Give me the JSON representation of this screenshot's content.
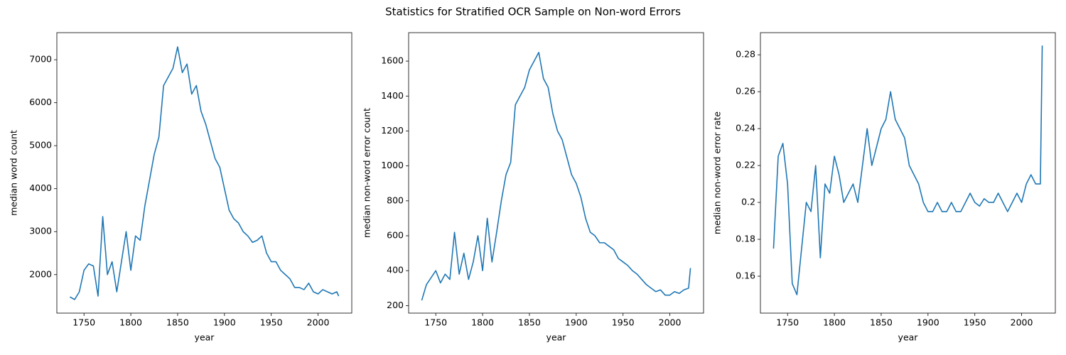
{
  "title": "Statistics for Stratified OCR Sample on Non-word Errors",
  "chart_data": [
    {
      "type": "line",
      "xlabel": "year",
      "ylabel": "median word count",
      "x": [
        1735,
        1740,
        1745,
        1750,
        1755,
        1760,
        1765,
        1770,
        1775,
        1780,
        1785,
        1790,
        1795,
        1800,
        1805,
        1810,
        1815,
        1820,
        1825,
        1830,
        1835,
        1840,
        1845,
        1850,
        1855,
        1860,
        1865,
        1870,
        1875,
        1880,
        1885,
        1890,
        1895,
        1900,
        1905,
        1910,
        1915,
        1920,
        1925,
        1930,
        1935,
        1940,
        1945,
        1950,
        1955,
        1960,
        1965,
        1970,
        1975,
        1980,
        1985,
        1990,
        1995,
        2000,
        2005,
        2010,
        2015,
        2020,
        2022
      ],
      "series": [
        {
          "color": "#1f77b4",
          "values": [
            1480,
            1420,
            1600,
            2100,
            2250,
            2200,
            1500,
            3350,
            2000,
            2300,
            1600,
            2300,
            3000,
            2100,
            2900,
            2800,
            3600,
            4200,
            4800,
            5200,
            6400,
            6600,
            6800,
            7300,
            6700,
            6900,
            6200,
            6400,
            5800,
            5500,
            5100,
            4700,
            4500,
            4000,
            3500,
            3300,
            3200,
            3000,
            2900,
            2750,
            2800,
            2900,
            2500,
            2300,
            2300,
            2100,
            2000,
            1900,
            1700,
            1700,
            1650,
            1800,
            1600,
            1550,
            1650,
            1600,
            1550,
            1600,
            1500
          ]
        }
      ],
      "xlim": [
        1721,
        2036
      ],
      "xticks": [
        1750,
        1800,
        1850,
        1900,
        1950,
        2000
      ],
      "ylim": [
        1104,
        7630
      ],
      "yticks": [
        2000,
        3000,
        4000,
        5000,
        6000,
        7000
      ]
    },
    {
      "type": "line",
      "xlabel": "year",
      "ylabel": "median non-word error count",
      "x": [
        1735,
        1740,
        1745,
        1750,
        1755,
        1760,
        1765,
        1770,
        1775,
        1780,
        1785,
        1790,
        1795,
        1800,
        1805,
        1810,
        1815,
        1820,
        1825,
        1830,
        1835,
        1840,
        1845,
        1850,
        1855,
        1860,
        1865,
        1870,
        1875,
        1880,
        1885,
        1890,
        1895,
        1900,
        1905,
        1910,
        1915,
        1920,
        1925,
        1930,
        1935,
        1940,
        1945,
        1950,
        1955,
        1960,
        1965,
        1970,
        1975,
        1980,
        1985,
        1990,
        1995,
        2000,
        2005,
        2010,
        2015,
        2020,
        2022
      ],
      "series": [
        {
          "color": "#1f77b4",
          "values": [
            230,
            320,
            360,
            400,
            330,
            380,
            350,
            620,
            380,
            500,
            350,
            450,
            600,
            400,
            700,
            450,
            620,
            800,
            950,
            1020,
            1350,
            1400,
            1450,
            1550,
            1600,
            1650,
            1500,
            1450,
            1300,
            1200,
            1150,
            1050,
            950,
            900,
            820,
            700,
            620,
            600,
            560,
            560,
            540,
            520,
            470,
            450,
            430,
            400,
            380,
            350,
            320,
            300,
            280,
            290,
            260,
            260,
            280,
            270,
            290,
            300,
            415
          ]
        }
      ],
      "xlim": [
        1721,
        2036
      ],
      "xticks": [
        1750,
        1800,
        1850,
        1900,
        1950,
        2000
      ],
      "ylim": [
        157,
        1763
      ],
      "yticks": [
        200,
        400,
        600,
        800,
        1000,
        1200,
        1400,
        1600
      ]
    },
    {
      "type": "line",
      "xlabel": "year",
      "ylabel": "median non-word error rate",
      "x": [
        1735,
        1740,
        1745,
        1750,
        1755,
        1760,
        1765,
        1770,
        1775,
        1780,
        1785,
        1790,
        1795,
        1800,
        1805,
        1810,
        1815,
        1820,
        1825,
        1830,
        1835,
        1840,
        1845,
        1850,
        1855,
        1860,
        1865,
        1870,
        1875,
        1880,
        1885,
        1890,
        1895,
        1900,
        1905,
        1910,
        1915,
        1920,
        1925,
        1930,
        1935,
        1940,
        1945,
        1950,
        1955,
        1960,
        1965,
        1970,
        1975,
        1980,
        1985,
        1990,
        1995,
        2000,
        2005,
        2010,
        2015,
        2020,
        2022
      ],
      "series": [
        {
          "color": "#1f77b4",
          "values": [
            0.175,
            0.225,
            0.232,
            0.21,
            0.156,
            0.15,
            0.175,
            0.2,
            0.195,
            0.22,
            0.17,
            0.21,
            0.205,
            0.225,
            0.215,
            0.2,
            0.205,
            0.21,
            0.2,
            0.22,
            0.24,
            0.22,
            0.23,
            0.24,
            0.245,
            0.26,
            0.245,
            0.24,
            0.235,
            0.22,
            0.215,
            0.21,
            0.2,
            0.195,
            0.195,
            0.2,
            0.195,
            0.195,
            0.2,
            0.195,
            0.195,
            0.2,
            0.205,
            0.2,
            0.198,
            0.202,
            0.2,
            0.2,
            0.205,
            0.2,
            0.195,
            0.2,
            0.205,
            0.2,
            0.21,
            0.215,
            0.21,
            0.21,
            0.285
          ]
        }
      ],
      "xlim": [
        1721,
        2036
      ],
      "xticks": [
        1750,
        1800,
        1850,
        1900,
        1950,
        2000
      ],
      "ylim": [
        0.14,
        0.292
      ],
      "yticks": [
        0.16,
        0.18,
        0.2,
        0.22,
        0.24,
        0.26,
        0.28
      ]
    }
  ]
}
